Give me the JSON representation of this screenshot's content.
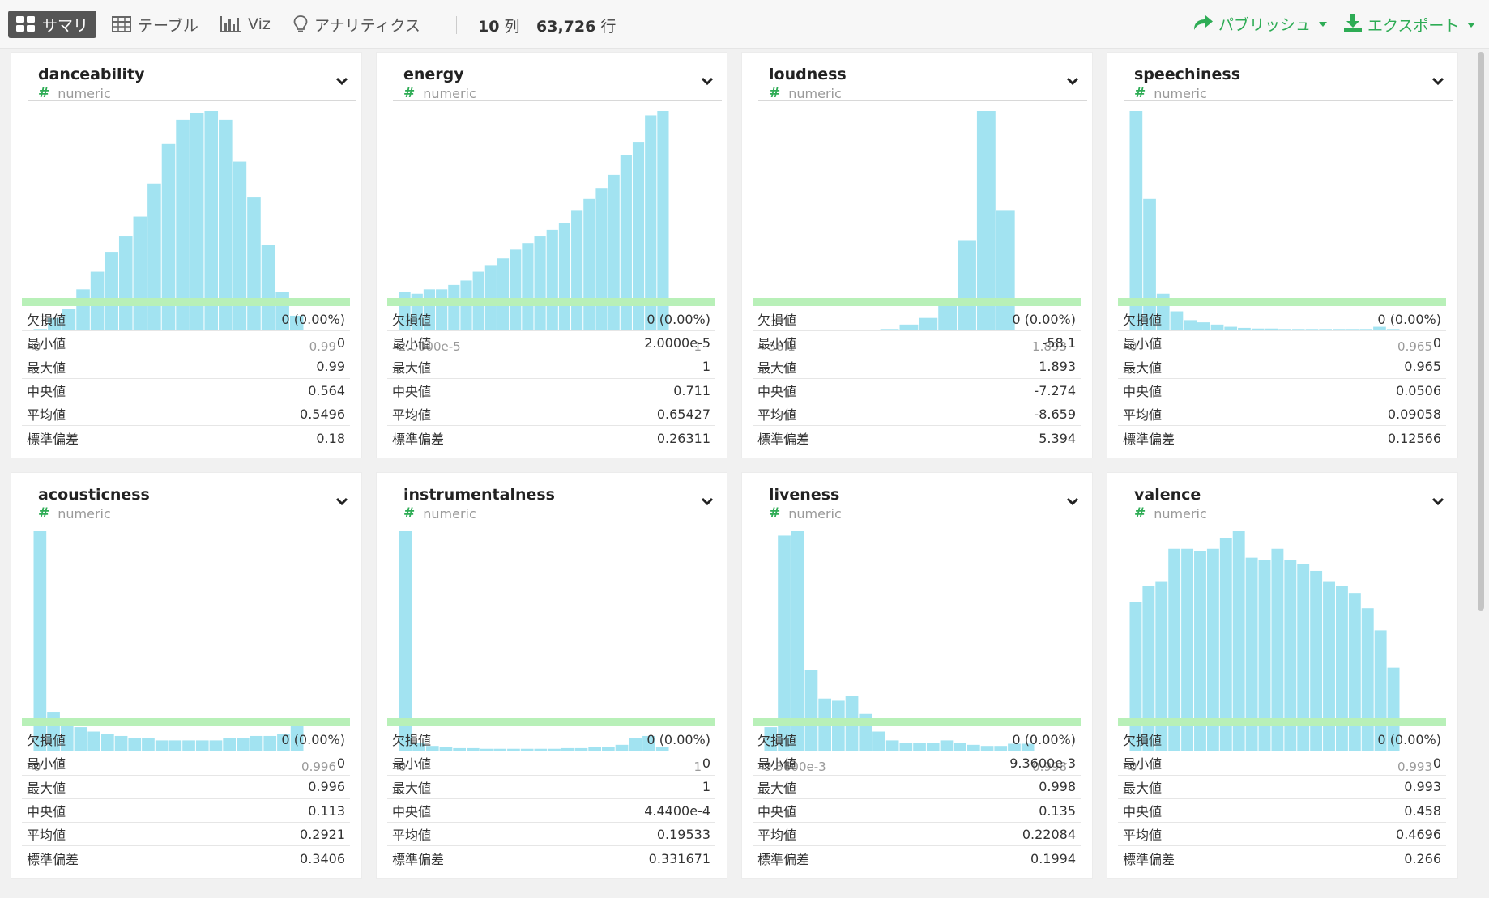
{
  "toolbar": {
    "tabs": [
      {
        "label": "サマリ",
        "icon": "grid-icon",
        "active": true
      },
      {
        "label": "テーブル",
        "icon": "table-icon",
        "active": false
      },
      {
        "label": "Viz",
        "icon": "bar-chart-icon",
        "active": false
      },
      {
        "label": "アナリティクス",
        "icon": "lightbulb-icon",
        "active": false
      }
    ],
    "col_count": "10",
    "col_unit": "列",
    "row_count": "63,726",
    "row_unit": "行",
    "publish_label": "パブリッシュ",
    "export_label": "エクスポート",
    "accent_color": "#2eac55"
  },
  "stat_labels": [
    "欠損値",
    "最小値",
    "最大値",
    "中央値",
    "平均値",
    "標準偏差"
  ],
  "type_label": "numeric",
  "bar_color": "#a2e3f1",
  "cards": [
    {
      "name": "danceability",
      "axis_min": "0",
      "axis_max": "0.99",
      "stats": [
        "0 (0.00%)",
        "0",
        "0.99",
        "0.564",
        "0.5496",
        "0.18"
      ],
      "hist": [
        1,
        6,
        10,
        19,
        27,
        36,
        43,
        52,
        67,
        85,
        96,
        99,
        100,
        96,
        77,
        61,
        39,
        18,
        7
      ]
    },
    {
      "name": "energy",
      "axis_min": "2.0000e-5",
      "axis_max": "1",
      "stats": [
        "0 (0.00%)",
        "2.0000e-5",
        "1",
        "0.711",
        "0.65427",
        "0.26311"
      ],
      "hist": [
        18,
        17,
        19,
        19,
        21,
        23,
        27,
        30,
        33,
        37,
        40,
        43,
        46,
        49,
        55,
        60,
        65,
        71,
        80,
        86,
        98,
        100
      ]
    },
    {
      "name": "loudness",
      "axis_min": "-58.1",
      "axis_max": "1.893",
      "stats": [
        "0 (0.00%)",
        "-58.1",
        "1.893",
        "-7.274",
        "-8.659",
        "5.394"
      ],
      "hist": [
        0.3,
        0.3,
        0.3,
        0.3,
        0.5,
        0.5,
        1,
        3,
        6,
        14,
        41,
        100,
        55,
        0.4
      ]
    },
    {
      "name": "speechiness",
      "axis_min": "0",
      "axis_max": "0.965",
      "stats": [
        "0 (0.00%)",
        "0",
        "0.965",
        "0.0506",
        "0.09058",
        "0.12566"
      ],
      "hist": [
        100,
        60,
        17,
        9,
        5,
        4,
        3,
        2,
        1.5,
        1.2,
        1.2,
        1,
        1,
        1,
        1,
        1,
        1,
        1,
        2,
        1
      ]
    },
    {
      "name": "acousticness",
      "axis_min": "0",
      "axis_max": "0.996",
      "stats": [
        "0 (0.00%)",
        "0",
        "0.996",
        "0.113",
        "0.2921",
        "0.3406"
      ],
      "hist": [
        100,
        18,
        14,
        11,
        9,
        8,
        7,
        6,
        6,
        5,
        5,
        5,
        5,
        5,
        6,
        6,
        7,
        7,
        8,
        14
      ]
    },
    {
      "name": "instrumentalness",
      "axis_min": "0",
      "axis_max": "1",
      "stats": [
        "0 (0.00%)",
        "0",
        "1",
        "4.4400e-4",
        "0.19533",
        "0.331671"
      ],
      "hist": [
        100,
        4,
        2.5,
        2,
        1.5,
        1.5,
        1.2,
        1.2,
        1.2,
        1.2,
        1.2,
        1.2,
        1.5,
        1.5,
        2,
        2,
        3,
        6,
        7,
        2
      ]
    },
    {
      "name": "liveness",
      "axis_min": "9.3600e-3",
      "axis_max": "0.998",
      "stats": [
        "0 (0.00%)",
        "9.3600e-3",
        "0.998",
        "0.135",
        "0.22084",
        "0.1994"
      ],
      "hist": [
        11,
        98,
        100,
        37,
        24,
        23,
        25,
        17,
        9,
        5,
        4,
        4,
        4,
        5,
        4,
        3,
        2.5,
        2.5,
        3.5,
        3.5
      ]
    },
    {
      "name": "valence",
      "axis_min": "0",
      "axis_max": "0.993",
      "stats": [
        "0 (0.00%)",
        "0",
        "0.993",
        "0.458",
        "0.4696",
        "0.266"
      ],
      "hist": [
        68,
        75,
        77,
        92,
        92,
        91,
        92,
        97,
        100,
        88,
        87,
        92,
        87,
        85,
        82,
        77,
        75,
        72,
        65,
        55,
        38
      ]
    }
  ]
}
